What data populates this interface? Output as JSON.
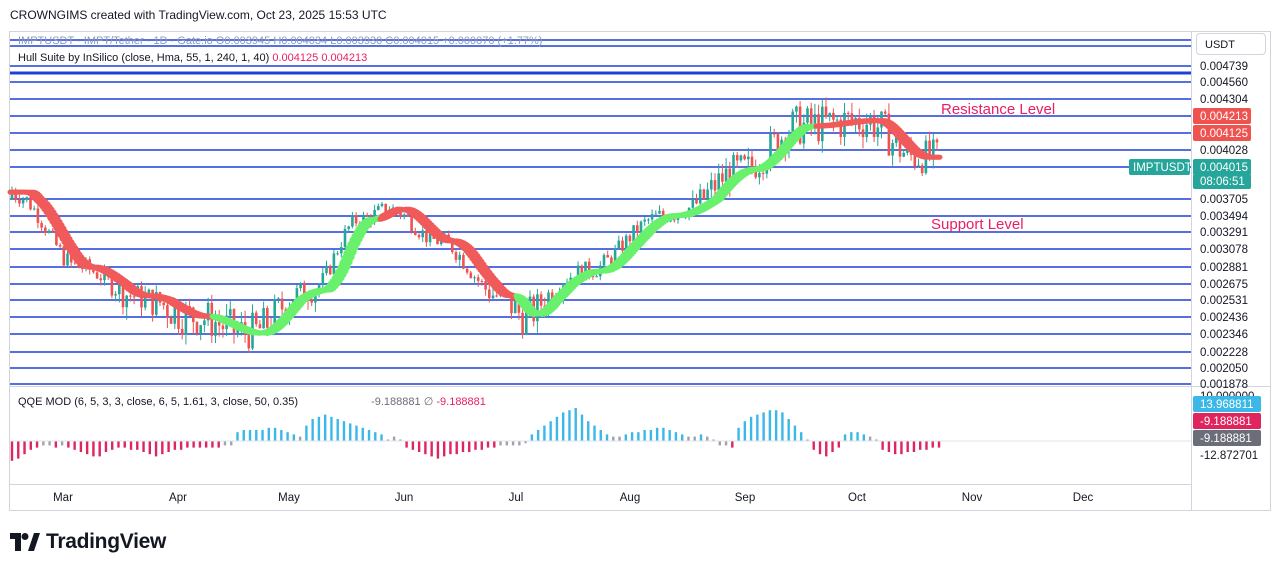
{
  "credit": "CROWNGIMS created with TradingView.com, Oct 23, 2025 15:53 UTC",
  "currency_button": "USDT",
  "legend_main": "IMPTUSDT · IMPT/Tether · 1D · Gate.io  O0.003945  H0.004034  L0.003930  C0.004015  +0.000070 (+1.77%)",
  "legend_hull_name": "Hull Suite by InSilico (close, Hma, 55, 1, 240, 1, 40)",
  "legend_hull_v1": "0.004125",
  "legend_hull_v2": "0.004213",
  "legend_qqe_name": "QQE MOD (6, 5, 3, 3, close, 6, 5, 1.61, 3, close, 50, 0.35)",
  "legend_qqe_v1": "-9.188881",
  "legend_qqe_sym": "∅",
  "legend_qqe_v2": "-9.188881",
  "brand": "TradingView",
  "colors": {
    "up": "#26a69a",
    "down": "#ef5350",
    "hull_up": "#69f06c",
    "hull_down": "#f05a5a",
    "level": "#1e40d8",
    "annotation": "#e91e63",
    "qqe_pos": "#3bb8e8",
    "qqe_neg": "#e0245e",
    "qqe_neu": "#9ea3ad"
  },
  "chart_data": {
    "type": "candlestick",
    "symbol": "IMPTUSDT",
    "interval": "1D",
    "exchange": "Gate.io",
    "x_ticks": [
      "Mar",
      "Apr",
      "May",
      "Jun",
      "Jul",
      "Aug",
      "Sep",
      "Oct",
      "Nov",
      "Dec"
    ],
    "price_axis_labels": [
      "0.004739",
      "0.004560",
      "0.004304",
      "0.004213",
      "0.004125",
      "0.004028",
      "0.004015",
      "0.003705",
      "0.003494",
      "0.003291",
      "0.003078",
      "0.002881",
      "0.002675",
      "0.002531",
      "0.002436",
      "0.002346",
      "0.002228",
      "0.002050",
      "0.001878"
    ],
    "y_range": [
      0.001878,
      0.004739
    ],
    "horizontal_levels": [
      0.004739,
      0.00456,
      0.004304,
      0.004213,
      0.004125,
      0.004028,
      0.003705,
      0.003494,
      0.003291,
      0.003078,
      0.002881,
      0.002675,
      0.002531,
      0.002436,
      0.002346,
      0.002228,
      0.00205,
      0.001878
    ],
    "annotations": [
      "Resistance Level",
      "Support Level"
    ],
    "last_price": {
      "symbol": "IMPTUSDT",
      "value": "0.004015",
      "countdown": "08:06:51"
    },
    "hull_labels": {
      "upper": "0.004213",
      "lower": "0.004125"
    },
    "ohlc_last": {
      "open": 0.003945,
      "high": 0.004034,
      "low": 0.00393,
      "close": 0.004015,
      "change": 7e-05,
      "change_pct": 1.77
    },
    "hull_series": [
      {
        "x": "Feb 22",
        "y": 0.00375,
        "trend": "down"
      },
      {
        "x": "Mar 10",
        "y": 0.00288,
        "trend": "down"
      },
      {
        "x": "Mar 25",
        "y": 0.00257,
        "trend": "down"
      },
      {
        "x": "Apr 10",
        "y": 0.00244,
        "trend": "down"
      },
      {
        "x": "Apr 25",
        "y": 0.00235,
        "trend": "up"
      },
      {
        "x": "May 12",
        "y": 0.00262,
        "trend": "up"
      },
      {
        "x": "May 25",
        "y": 0.00345,
        "trend": "up"
      },
      {
        "x": "Jun 2",
        "y": 0.00358,
        "trend": "down"
      },
      {
        "x": "Jun 15",
        "y": 0.00318,
        "trend": "down"
      },
      {
        "x": "Jul 1",
        "y": 0.00257,
        "trend": "down"
      },
      {
        "x": "Jul 8",
        "y": 0.00245,
        "trend": "up"
      },
      {
        "x": "Jul 25",
        "y": 0.00283,
        "trend": "up"
      },
      {
        "x": "Aug 15",
        "y": 0.0035,
        "trend": "up"
      },
      {
        "x": "Sep 5",
        "y": 0.0039,
        "trend": "up"
      },
      {
        "x": "Sep 20",
        "y": 0.00416,
        "trend": "up"
      },
      {
        "x": "Oct 8",
        "y": 0.00419,
        "trend": "down"
      },
      {
        "x": "Oct 22",
        "y": 0.00398,
        "trend": "down"
      }
    ],
    "qqe_axis_labels": [
      "10.000000",
      "13.968811",
      "-9.188881",
      "-9.188881",
      "-12.872701"
    ],
    "qqe_histogram": [
      -9,
      -8,
      -6,
      -4,
      -3,
      -2,
      -2,
      -3,
      -2,
      -3,
      -4,
      -5,
      -6,
      -7,
      -7,
      -5,
      -4,
      -3,
      -3,
      -4,
      -4,
      -5,
      -6,
      -7,
      -6,
      -5,
      -4,
      -4,
      -3,
      -3,
      -3,
      -3,
      -3,
      -3,
      -2,
      -2,
      4,
      5,
      5,
      5,
      5,
      6,
      6,
      5,
      4,
      3,
      2,
      7,
      10,
      11,
      12,
      11,
      10,
      9,
      8,
      7,
      6,
      5,
      4,
      3,
      0,
      2,
      0,
      -3,
      -4,
      -5,
      -6,
      -7,
      -8,
      -7,
      -6,
      -6,
      -5,
      -5,
      -4,
      -4,
      -3,
      -3,
      -2,
      -2,
      -2,
      -2,
      -1,
      3,
      5,
      7,
      9,
      11,
      13,
      14,
      15,
      12,
      9,
      7,
      5,
      3,
      2,
      2,
      3,
      4,
      4,
      5,
      5,
      6,
      6,
      5,
      4,
      3,
      2,
      2,
      3,
      2,
      0,
      -2,
      -2,
      -3,
      6,
      9,
      11,
      12,
      13,
      14,
      14,
      13,
      10,
      7,
      4,
      0,
      -4,
      -6,
      -7,
      -5,
      -3,
      3,
      4,
      4,
      3,
      2,
      0,
      -4,
      -5,
      -6,
      -6,
      -5,
      -5,
      -4,
      -4,
      -3,
      -3
    ]
  }
}
